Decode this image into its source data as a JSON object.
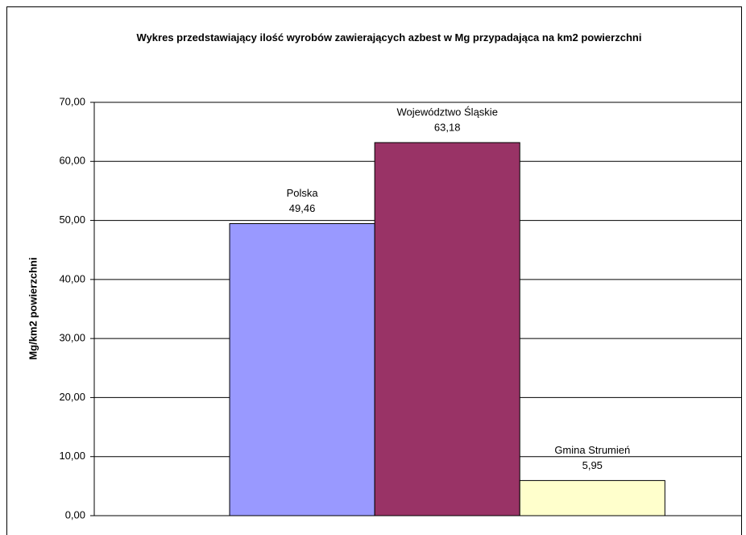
{
  "chart_data": {
    "type": "bar",
    "title": "Wykres przedstawiający ilość wyrobów zawierających azbest w Mg przypadająca na km2 powierzchni",
    "y_label": "Mg/km2 powierzchni",
    "categories": [
      null
    ],
    "series": [
      {
        "name": "Polska",
        "color": "#9999ff",
        "values": [
          49.46
        ],
        "value_labels": [
          "49,46"
        ]
      },
      {
        "name": "Województwo Śląskie",
        "color": "#993366",
        "values": [
          63.18
        ],
        "value_labels": [
          "63,18"
        ]
      },
      {
        "name": "Gmina Strumień",
        "color": "#ffffcc",
        "values": [
          5.95
        ],
        "value_labels": [
          "5,95"
        ]
      }
    ],
    "ylim": [
      0,
      70
    ],
    "yticks": [
      {
        "value": 0,
        "label": "0,00"
      },
      {
        "value": 10,
        "label": "10,00"
      },
      {
        "value": 20,
        "label": "20,00"
      },
      {
        "value": 30,
        "label": "30,00"
      },
      {
        "value": 40,
        "label": "40,00"
      },
      {
        "value": 50,
        "label": "50,00"
      },
      {
        "value": 60,
        "label": "60,00"
      },
      {
        "value": 70,
        "label": "70,00"
      }
    ],
    "grid": true
  }
}
